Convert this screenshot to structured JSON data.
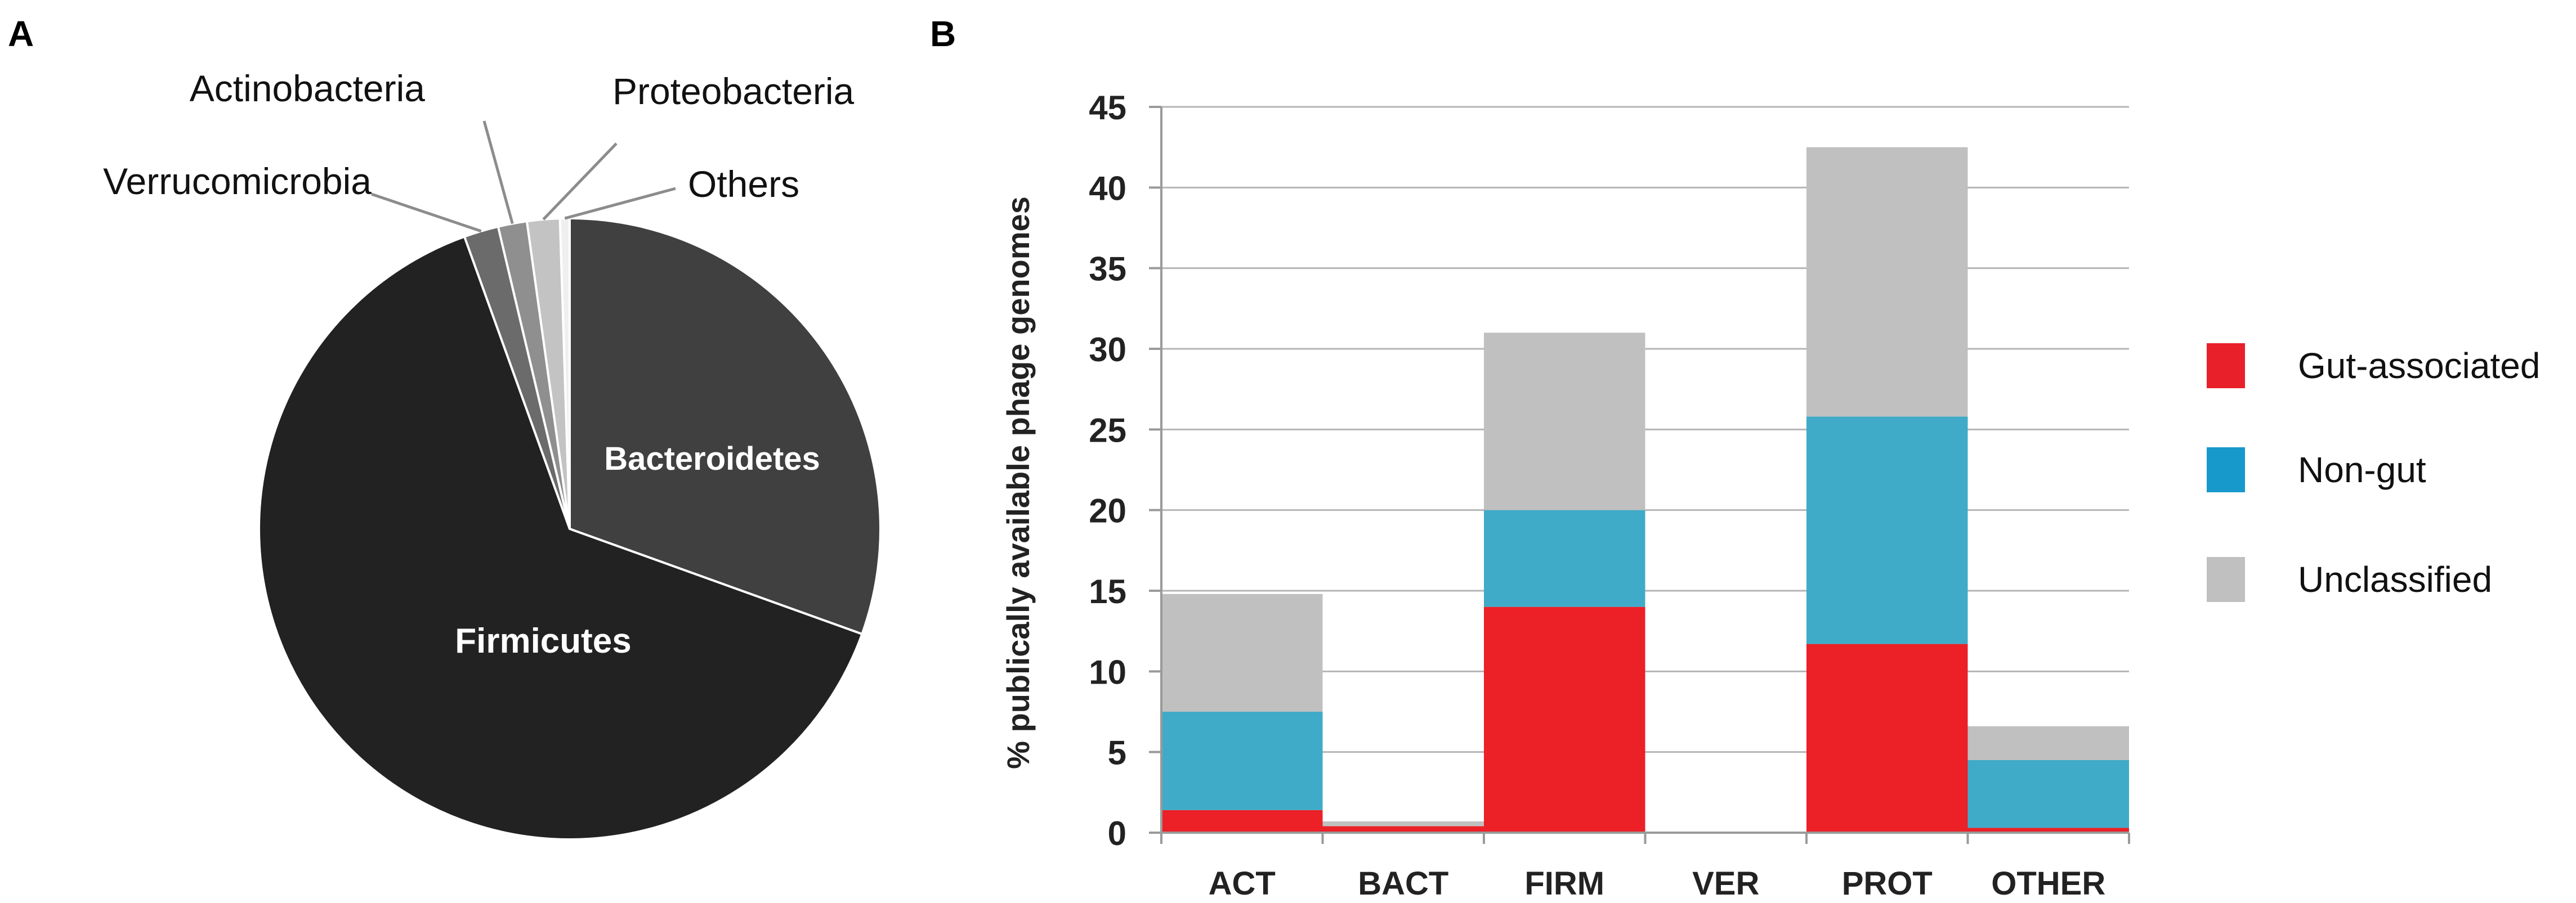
{
  "panels": {
    "a_label": "A",
    "b_label": "B"
  },
  "chart_data": [
    {
      "type": "pie",
      "panel": "A",
      "title": "",
      "slices": [
        {
          "label": "Bacteroidetes",
          "value": 30.5,
          "color": "#404040"
        },
        {
          "label": "Firmicutes",
          "value": 64.0,
          "color": "#222222"
        },
        {
          "label": "Verrucomicrobia",
          "value": 1.8,
          "color": "#6b6b6b"
        },
        {
          "label": "Actinobacteria",
          "value": 1.5,
          "color": "#8f8f8f"
        },
        {
          "label": "Proteobacteria",
          "value": 1.7,
          "color": "#c3c3c3"
        },
        {
          "label": "Others",
          "value": 0.5,
          "color": "#efefef"
        }
      ],
      "label_placement": {
        "Bacteroidetes": "inside",
        "Firmicutes": "inside",
        "Verrucomicrobia": "outside",
        "Actinobacteria": "outside",
        "Proteobacteria": "outside",
        "Others": "outside"
      }
    },
    {
      "type": "bar",
      "stacked": true,
      "panel": "B",
      "title": "",
      "xlabel": "",
      "ylabel": "% publically available phage genomes",
      "ylim": [
        0,
        45
      ],
      "yticks": [
        0,
        5,
        10,
        15,
        20,
        25,
        30,
        35,
        40,
        45
      ],
      "grid": true,
      "legend_position": "right",
      "categories": [
        "ACT",
        "BACT",
        "FIRM",
        "VER",
        "PROT",
        "OTHER"
      ],
      "series": [
        {
          "name": "Gut-associated",
          "color": "#ec2027",
          "values": [
            1.4,
            0.4,
            14.0,
            0,
            11.7,
            0.3
          ]
        },
        {
          "name": "Non-gut",
          "color": "#3fabc8",
          "values": [
            6.1,
            0.0,
            6.0,
            0,
            14.1,
            4.2
          ]
        },
        {
          "name": "Unclassified",
          "color": "#c0c0c0",
          "values": [
            7.3,
            0.3,
            11.0,
            0,
            16.7,
            2.1
          ]
        }
      ],
      "legend_swatch_colors": [
        "#e8202a",
        "#1899cc",
        "#c0c0c0"
      ]
    }
  ]
}
